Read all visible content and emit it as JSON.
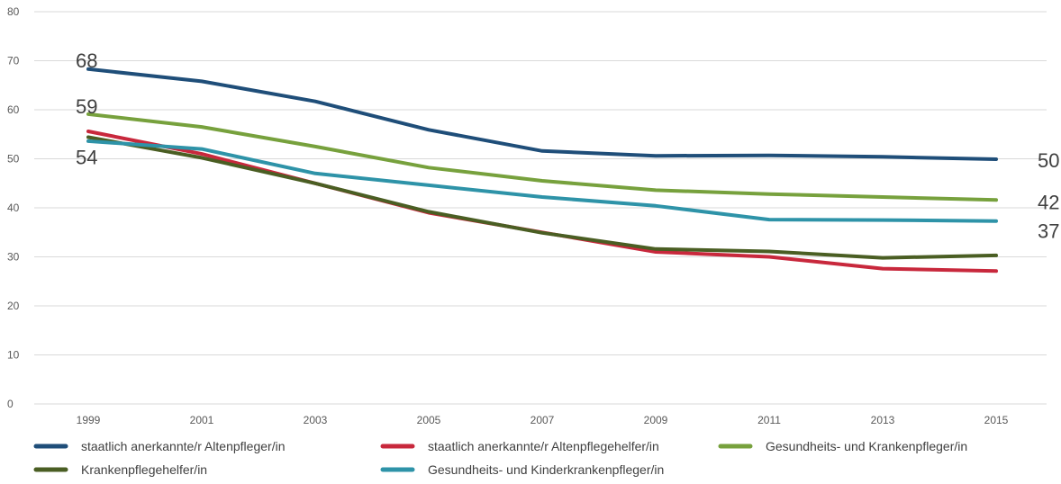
{
  "chart_data": {
    "type": "line",
    "x": [
      "1999",
      "2001",
      "2003",
      "2005",
      "2007",
      "2009",
      "2011",
      "2013",
      "2015"
    ],
    "ylim": [
      0,
      80
    ],
    "yticks": [
      0,
      10,
      20,
      30,
      40,
      50,
      60,
      70,
      80
    ],
    "ytick_labels": [
      "0",
      "10",
      "20",
      "30",
      "40",
      "50",
      "60",
      "70",
      "80"
    ],
    "grid": true,
    "legend_position": "bottom",
    "series": [
      {
        "name": "staatlich anerkannte/r Altenpfleger/in",
        "color": "#1f4e79",
        "values": [
          68.3,
          65.8,
          61.7,
          55.9,
          51.6,
          50.6,
          50.7,
          50.4,
          49.9
        ],
        "labels": [
          {
            "index": 0,
            "text": "68"
          },
          {
            "index": 8,
            "text": "50"
          }
        ]
      },
      {
        "name": "staatlich anerkannte/r Altenpflegehelfer/in",
        "color": "#c8283c",
        "values": [
          55.6,
          51.0,
          45.0,
          39.0,
          35.0,
          31.0,
          30.0,
          27.6,
          27.1
        ],
        "labels": []
      },
      {
        "name": "Gesundheits- und Krankenpfleger/in",
        "color": "#77a13d",
        "values": [
          59.1,
          56.5,
          52.5,
          48.2,
          45.5,
          43.6,
          42.8,
          42.2,
          41.6
        ],
        "labels": [
          {
            "index": 0,
            "text": "59"
          },
          {
            "index": 8,
            "text": "42"
          }
        ]
      },
      {
        "name": "Krankenpflegehelfer/in",
        "color": "#4a5e23",
        "values": [
          54.4,
          50.2,
          45.0,
          39.2,
          34.9,
          31.6,
          31.1,
          29.8,
          30.3
        ],
        "labels": [
          {
            "index": 0,
            "text": "54"
          }
        ]
      },
      {
        "name": "Gesundheits- und Kinderkrankenpfleger/in",
        "color": "#2e93a8",
        "values": [
          53.6,
          52.0,
          47.0,
          44.6,
          42.2,
          40.4,
          37.6,
          37.5,
          37.3
        ],
        "labels": [
          {
            "index": 8,
            "text": "37"
          }
        ]
      }
    ]
  }
}
